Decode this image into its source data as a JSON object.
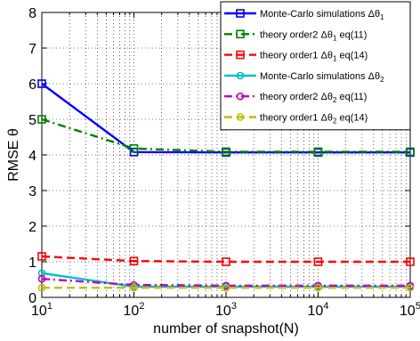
{
  "chart_data": {
    "type": "line",
    "xlabel": "number of snapshot(N)",
    "ylabel": "RMSE θ",
    "xscale": "log",
    "xlim": [
      10,
      100000
    ],
    "ylim": [
      0,
      8
    ],
    "grid": "dotted",
    "legend_placement": "top-right",
    "x": [
      10,
      100,
      1000,
      10000,
      100000
    ],
    "x_ticks": [
      {
        "base": "10",
        "exp": "1"
      },
      {
        "base": "10",
        "exp": "2"
      },
      {
        "base": "10",
        "exp": "3"
      },
      {
        "base": "10",
        "exp": "4"
      },
      {
        "base": "10",
        "exp": "5"
      }
    ],
    "y_ticks": [
      "0",
      "1",
      "2",
      "3",
      "4",
      "5",
      "6",
      "7",
      "8"
    ],
    "series": [
      {
        "name": "Monte-Carlo simulations Δθ",
        "sub": "1",
        "color": "#0000ff",
        "dash": "solid",
        "marker": "square",
        "values": [
          6.0,
          4.08,
          4.07,
          4.07,
          4.07
        ]
      },
      {
        "name": "theory order2 Δθ",
        "sub": "1",
        "suffix": " eq(11)",
        "color": "#008000",
        "dash": "dashdot",
        "marker": "square",
        "values": [
          5.0,
          4.18,
          4.09,
          4.09,
          4.09
        ]
      },
      {
        "name": "theory order1 Δθ",
        "sub": "1",
        "suffix": " eq(14)",
        "color": "#ff0000",
        "dash": "dashed",
        "marker": "square",
        "values": [
          1.15,
          1.02,
          1.0,
          1.0,
          1.0
        ]
      },
      {
        "name": "Monte-Carlo simulations Δθ",
        "sub": "2",
        "color": "#00bfbf",
        "dash": "solid",
        "marker": "circle",
        "values": [
          0.68,
          0.3,
          0.3,
          0.3,
          0.3
        ]
      },
      {
        "name": "theory order2 Δθ",
        "sub": "2",
        "suffix": " eq(11)",
        "color": "#bf00bf",
        "dash": "dashdot",
        "marker": "circle",
        "values": [
          0.52,
          0.35,
          0.33,
          0.33,
          0.33
        ]
      },
      {
        "name": "theory order1 Δθ",
        "sub": "2",
        "suffix": " eq(14)",
        "color": "#bfbf00",
        "dash": "dashed",
        "marker": "circle",
        "values": [
          0.27,
          0.27,
          0.27,
          0.27,
          0.27
        ]
      }
    ]
  }
}
